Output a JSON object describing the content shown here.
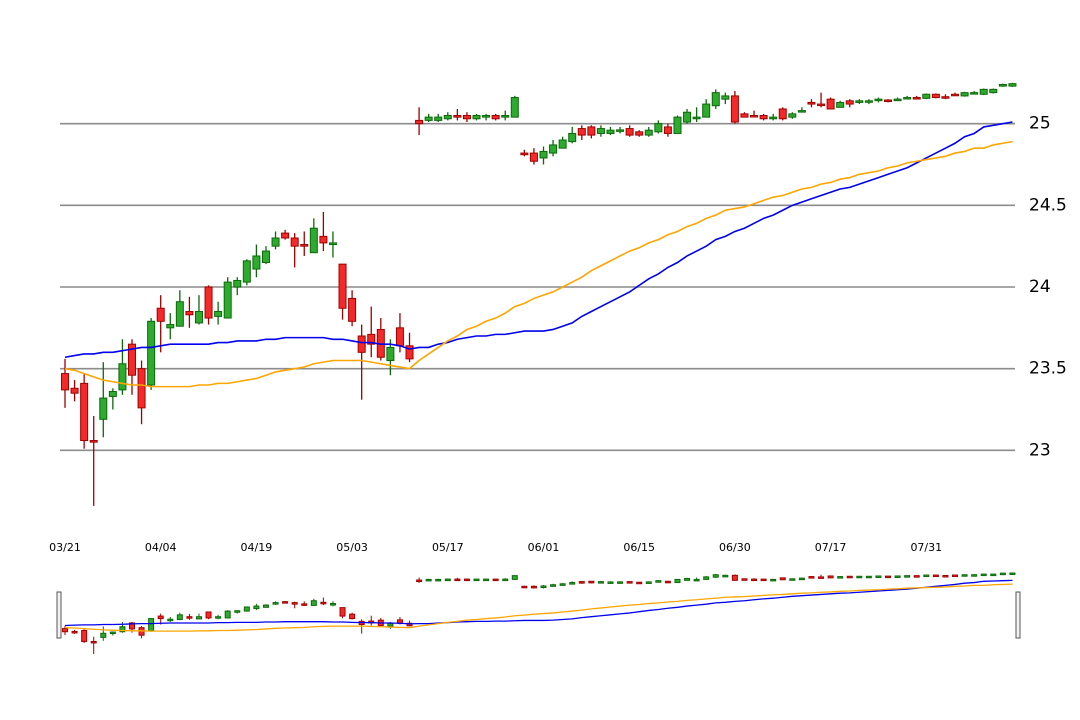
{
  "chart_data": {
    "type": "candlestick",
    "categories": [
      "03/21",
      null,
      null,
      null,
      null,
      null,
      null,
      null,
      null,
      null,
      "04/04",
      null,
      null,
      null,
      null,
      null,
      null,
      null,
      null,
      null,
      "04/19",
      null,
      null,
      null,
      null,
      null,
      null,
      null,
      null,
      null,
      "05/03",
      null,
      null,
      null,
      null,
      null,
      null,
      null,
      null,
      null,
      "05/17",
      null,
      null,
      null,
      null,
      null,
      null,
      null,
      null,
      null,
      "06/01",
      null,
      null,
      null,
      null,
      null,
      null,
      null,
      null,
      null,
      "06/15",
      null,
      null,
      null,
      null,
      null,
      null,
      null,
      null,
      null,
      "06/30",
      null,
      null,
      null,
      null,
      null,
      null,
      null,
      null,
      null,
      "07/17",
      null,
      null,
      null,
      null,
      null,
      null,
      null,
      null,
      null,
      "07/31",
      null,
      null,
      null,
      null,
      null,
      null,
      null,
      null,
      null
    ],
    "open": [
      23.47,
      23.38,
      23.41,
      23.06,
      23.19,
      23.33,
      23.37,
      23.65,
      23.5,
      23.4,
      23.87,
      23.75,
      23.76,
      23.85,
      23.78,
      24.0,
      23.82,
      23.81,
      24.0,
      24.03,
      24.11,
      24.15,
      24.25,
      24.33,
      24.3,
      24.26,
      24.21,
      24.31,
      24.26,
      24.14,
      23.93,
      23.7,
      23.71,
      23.74,
      23.55,
      23.75,
      23.64,
      25.02,
      25.02,
      25.02,
      25.03,
      25.05,
      25.05,
      25.03,
      25.04,
      25.05,
      25.04,
      25.04,
      24.82,
      24.82,
      24.79,
      24.82,
      24.85,
      24.89,
      24.97,
      24.98,
      24.94,
      24.94,
      24.955,
      24.97,
      24.95,
      24.93,
      24.95,
      24.98,
      24.94,
      25.01,
      25.03,
      25.04,
      25.11,
      25.15,
      25.17,
      25.06,
      25.05,
      25.05,
      25.03,
      25.09,
      25.04,
      25.075,
      25.13,
      25.12,
      25.15,
      25.1,
      25.14,
      25.13,
      25.135,
      25.145,
      25.145,
      25.145,
      25.155,
      25.16,
      25.155,
      25.18,
      25.165,
      25.18,
      25.17,
      25.185,
      25.18,
      25.19,
      25.23,
      25.23
    ],
    "high": [
      23.56,
      23.43,
      23.47,
      23.21,
      23.54,
      23.38,
      23.68,
      23.68,
      23.55,
      23.81,
      23.95,
      23.84,
      23.98,
      23.94,
      23.95,
      24.01,
      23.91,
      24.06,
      24.06,
      24.17,
      24.26,
      24.25,
      24.34,
      24.35,
      24.33,
      24.34,
      24.42,
      24.46,
      24.34,
      24.14,
      23.98,
      23.77,
      23.88,
      23.81,
      23.68,
      23.84,
      23.72,
      25.1,
      25.06,
      25.06,
      25.07,
      25.09,
      25.07,
      25.06,
      25.06,
      25.06,
      25.08,
      25.17,
      24.84,
      24.85,
      24.86,
      24.9,
      24.92,
      24.98,
      24.99,
      24.99,
      24.99,
      24.98,
      24.98,
      24.99,
      24.96,
      24.98,
      25.02,
      25.0,
      25.05,
      25.09,
      25.1,
      25.15,
      25.21,
      25.19,
      25.2,
      25.07,
      25.08,
      25.06,
      25.06,
      25.1,
      25.07,
      25.1,
      25.15,
      25.19,
      25.16,
      25.14,
      25.15,
      25.15,
      25.15,
      25.16,
      25.15,
      25.16,
      25.17,
      25.17,
      25.185,
      25.185,
      25.18,
      25.19,
      25.195,
      25.2,
      25.215,
      25.215,
      25.245,
      25.25
    ],
    "low": [
      23.26,
      23.3,
      23.01,
      22.66,
      23.08,
      23.25,
      23.34,
      23.34,
      23.16,
      23.37,
      23.6,
      23.68,
      23.76,
      23.75,
      23.77,
      23.77,
      23.77,
      23.81,
      23.95,
      24.01,
      24.06,
      24.14,
      24.23,
      24.29,
      24.12,
      24.19,
      24.21,
      24.22,
      24.18,
      23.8,
      23.76,
      23.31,
      23.57,
      23.55,
      23.46,
      23.6,
      23.54,
      24.93,
      25.01,
      25.01,
      25.02,
      25.02,
      25.01,
      25.02,
      25.02,
      25.02,
      25.02,
      25.04,
      24.8,
      24.75,
      24.75,
      24.8,
      24.85,
      24.88,
      24.9,
      24.91,
      24.92,
      24.93,
      24.94,
      24.92,
      24.92,
      24.92,
      24.94,
      24.92,
      24.94,
      25.0,
      25.01,
      25.04,
      25.09,
      25.12,
      25.0,
      25.04,
      25.04,
      25.02,
      25.02,
      25.02,
      25.03,
      25.07,
      25.1,
      25.1,
      25.09,
      25.1,
      25.1,
      25.12,
      25.12,
      25.13,
      25.13,
      25.14,
      25.15,
      25.15,
      25.15,
      25.155,
      25.15,
      25.17,
      25.165,
      25.18,
      25.175,
      25.185,
      25.225,
      25.225
    ],
    "close": [
      23.37,
      23.35,
      23.06,
      23.05,
      23.32,
      23.36,
      23.53,
      23.46,
      23.26,
      23.79,
      23.79,
      23.77,
      23.91,
      23.83,
      23.85,
      23.81,
      23.85,
      24.03,
      24.04,
      24.16,
      24.19,
      24.22,
      24.3,
      24.3,
      24.25,
      24.25,
      24.36,
      24.27,
      24.27,
      23.87,
      23.79,
      23.6,
      23.65,
      23.57,
      23.63,
      23.64,
      23.56,
      25.0,
      25.04,
      25.04,
      25.05,
      25.04,
      25.03,
      25.05,
      25.05,
      25.03,
      25.05,
      25.16,
      24.81,
      24.77,
      24.83,
      24.87,
      24.9,
      24.94,
      24.93,
      24.93,
      24.97,
      24.96,
      24.962,
      24.93,
      24.93,
      24.96,
      25.0,
      24.94,
      25.04,
      25.07,
      25.04,
      25.12,
      25.19,
      25.17,
      25.01,
      25.04,
      25.045,
      25.03,
      25.04,
      25.03,
      25.06,
      25.08,
      25.12,
      25.115,
      25.09,
      25.13,
      25.12,
      25.14,
      25.14,
      25.15,
      25.14,
      25.15,
      25.16,
      25.155,
      25.18,
      25.16,
      25.16,
      25.175,
      25.19,
      25.19,
      25.21,
      25.21,
      25.24,
      25.245
    ],
    "up_color": "#2eaa2e",
    "up_edge_color": "#0a6a0a",
    "down_color": "#f42a2a",
    "down_edge_color": "#a00000",
    "series": [
      {
        "color": "#0000ee",
        "values": [
          23.57,
          23.58,
          23.59,
          23.59,
          23.6,
          23.6,
          23.61,
          23.62,
          23.63,
          23.63,
          23.64,
          23.65,
          23.65,
          23.65,
          23.65,
          23.65,
          23.66,
          23.66,
          23.67,
          23.67,
          23.67,
          23.68,
          23.68,
          23.69,
          23.69,
          23.69,
          23.69,
          23.69,
          23.68,
          23.68,
          23.67,
          23.66,
          23.66,
          23.65,
          23.65,
          23.64,
          23.62,
          23.63,
          23.63,
          23.65,
          23.66,
          23.68,
          23.69,
          23.7,
          23.7,
          23.71,
          23.71,
          23.72,
          23.73,
          23.73,
          23.73,
          23.74,
          23.76,
          23.78,
          23.82,
          23.85,
          23.88,
          23.91,
          23.94,
          23.97,
          24.01,
          24.05,
          24.08,
          24.12,
          24.15,
          24.19,
          24.22,
          24.25,
          24.29,
          24.31,
          24.34,
          24.36,
          24.39,
          24.42,
          24.44,
          24.47,
          24.5,
          24.52,
          24.54,
          24.56,
          24.58,
          24.6,
          24.61,
          24.63,
          24.65,
          24.67,
          24.69,
          24.71,
          24.73,
          24.76,
          24.79,
          24.82,
          24.85,
          24.88,
          24.92,
          24.94,
          24.98,
          24.99,
          25.0,
          25.01
        ]
      },
      {
        "color": "#ffa500",
        "values": [
          23.5,
          23.49,
          23.47,
          23.45,
          23.43,
          23.42,
          23.41,
          23.4,
          23.4,
          23.39,
          23.39,
          23.39,
          23.39,
          23.39,
          23.4,
          23.4,
          23.41,
          23.41,
          23.42,
          23.43,
          23.44,
          23.46,
          23.48,
          23.49,
          23.5,
          23.51,
          23.53,
          23.54,
          23.55,
          23.55,
          23.55,
          23.55,
          23.54,
          23.53,
          23.52,
          23.51,
          23.5,
          23.55,
          23.59,
          23.63,
          23.67,
          23.7,
          23.74,
          23.76,
          23.79,
          23.81,
          23.84,
          23.88,
          23.9,
          23.93,
          23.95,
          23.97,
          24.0,
          24.03,
          24.06,
          24.1,
          24.13,
          24.16,
          24.19,
          24.22,
          24.24,
          24.27,
          24.29,
          24.32,
          24.34,
          24.37,
          24.39,
          24.42,
          24.44,
          24.47,
          24.48,
          24.49,
          24.51,
          24.53,
          24.55,
          24.56,
          24.58,
          24.6,
          24.61,
          24.63,
          24.64,
          24.66,
          24.67,
          24.69,
          24.7,
          24.71,
          24.73,
          24.74,
          24.76,
          24.77,
          24.78,
          24.79,
          24.8,
          24.82,
          24.83,
          24.85,
          24.85,
          24.87,
          24.88,
          24.89
        ]
      }
    ],
    "ylim": [
      22.5,
      25.5
    ],
    "yticks": [
      23,
      23.5,
      24,
      24.5,
      25
    ],
    "grid": true,
    "navigator": true
  }
}
